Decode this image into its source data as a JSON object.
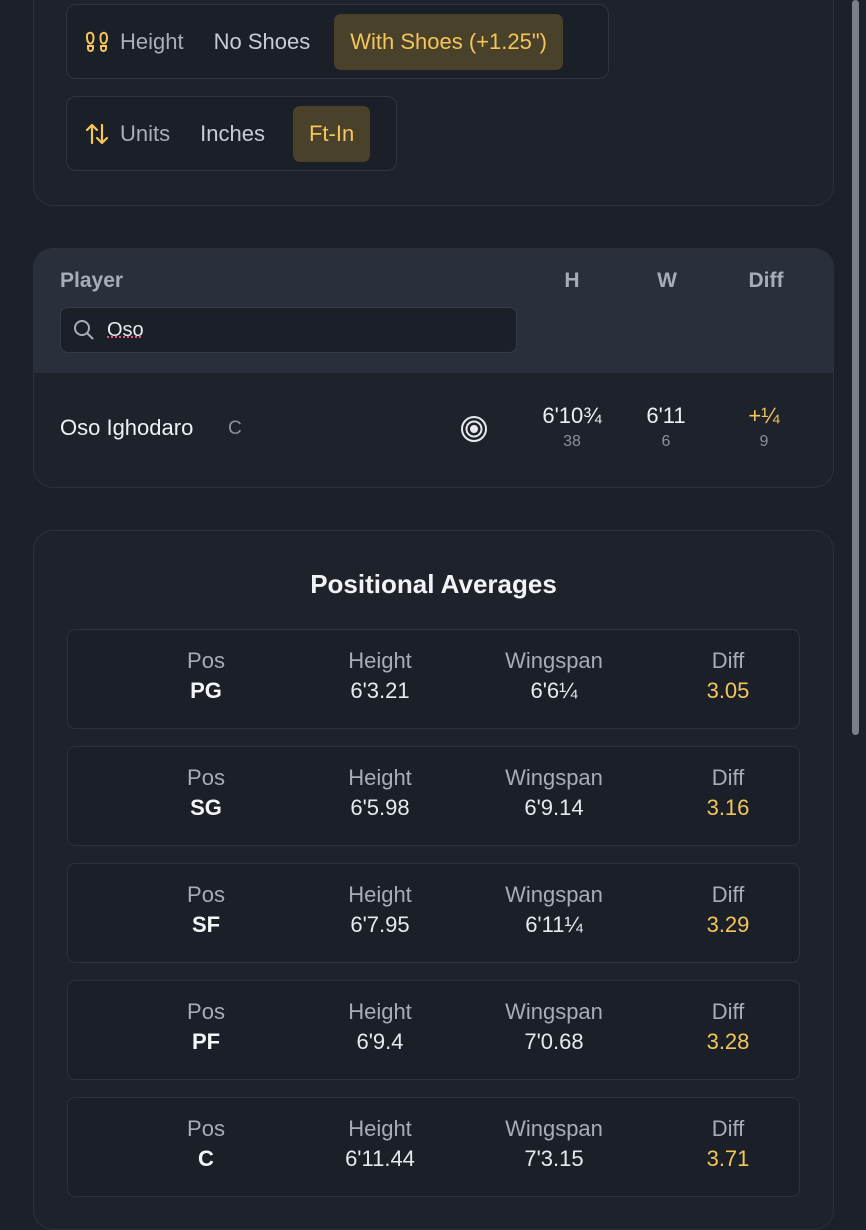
{
  "height_toggle": {
    "label": "Height",
    "options": [
      "No Shoes",
      "With Shoes (+1.25\")"
    ],
    "selected": "With Shoes (+1.25\")"
  },
  "units_toggle": {
    "label": "Units",
    "options": [
      "Inches",
      "Ft-In"
    ],
    "selected": "Ft-In"
  },
  "player_table": {
    "columns": {
      "player": "Player",
      "h": "H",
      "w": "W",
      "diff": "Diff"
    },
    "search": {
      "value": "Oso",
      "icon": "search-icon"
    },
    "rows": [
      {
        "name": "Oso Ighodaro",
        "position": "C",
        "height": "6'10¾",
        "height_rank": "38",
        "wingspan": "6'11",
        "wingspan_rank": "6",
        "diff": "+¼",
        "diff_rank": "9"
      }
    ]
  },
  "positional_averages": {
    "title": "Positional Averages",
    "labels": {
      "pos": "Pos",
      "height": "Height",
      "wingspan": "Wingspan",
      "diff": "Diff"
    },
    "rows": [
      {
        "pos": "PG",
        "height": "6'3.21",
        "wingspan": "6'6¼",
        "diff": "3.05"
      },
      {
        "pos": "SG",
        "height": "6'5.98",
        "wingspan": "6'9.14",
        "diff": "3.16"
      },
      {
        "pos": "SF",
        "height": "6'7.95",
        "wingspan": "6'11¼",
        "diff": "3.29"
      },
      {
        "pos": "PF",
        "height": "6'9.4",
        "wingspan": "7'0.68",
        "diff": "3.28"
      },
      {
        "pos": "C",
        "height": "6'11.44",
        "wingspan": "7'3.15",
        "diff": "3.71"
      }
    ]
  },
  "colors": {
    "accent": "#f3c55b",
    "background": "#1c2029"
  }
}
